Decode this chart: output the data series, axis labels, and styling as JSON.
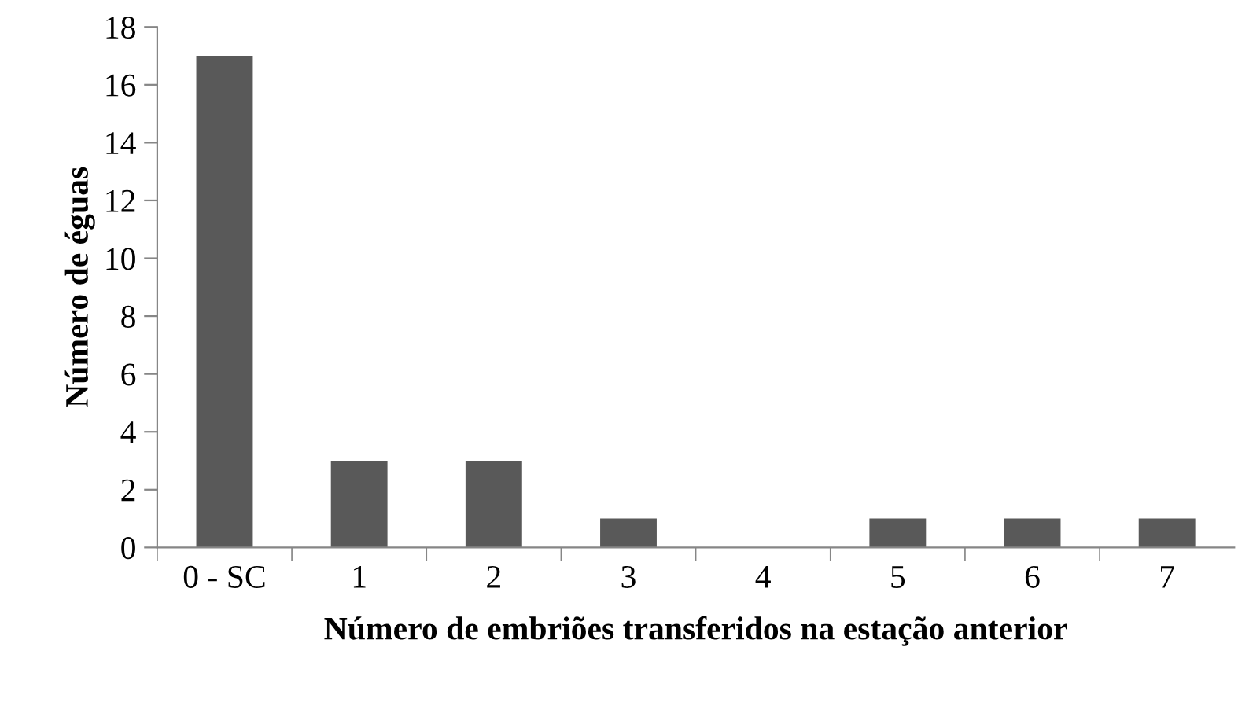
{
  "chart_data": {
    "type": "bar",
    "categories": [
      "0 - SC",
      "1",
      "2",
      "3",
      "4",
      "5",
      "6",
      "7"
    ],
    "values": [
      17,
      3,
      3,
      1,
      0,
      1,
      1,
      1
    ],
    "color": "#595959",
    "xlabel": "Número de embriões transferidos na estação anterior",
    "ylabel": "Número de éguas",
    "ylim": [
      0,
      18
    ],
    "yticks": [
      0,
      2,
      4,
      6,
      8,
      10,
      12,
      14,
      16,
      18
    ],
    "grid": false,
    "legend": false
  }
}
